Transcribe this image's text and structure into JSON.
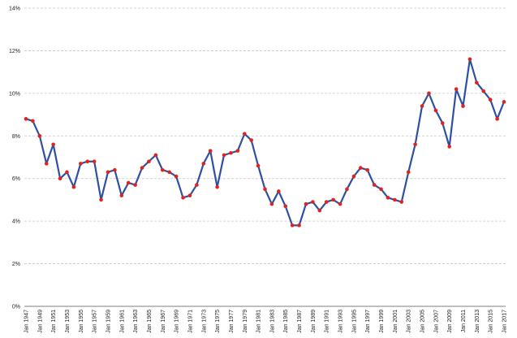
{
  "chart_data": {
    "type": "line",
    "title": "",
    "xlabel": "",
    "ylabel": "",
    "ylim": [
      0,
      14
    ],
    "y_ticks": [
      0,
      2,
      4,
      6,
      8,
      10,
      12,
      14
    ],
    "y_tick_labels": [
      "0%",
      "2%",
      "4%",
      "6%",
      "8%",
      "10%",
      "12%",
      "14%"
    ],
    "grid": "horizontal dashed",
    "legend": "none",
    "colors": {
      "line": "#2f50a2",
      "marker": "#e0231c",
      "grid": "#c8c8c8"
    },
    "x": [
      "Jan 1947",
      "Jan 1948",
      "Jan 1949",
      "Jan 1950",
      "Jan 1951",
      "Jan 1952",
      "Jan 1953",
      "Jan 1954",
      "Jan 1955",
      "Jan 1956",
      "Jan 1957",
      "Jan 1958",
      "Jan 1959",
      "Jan 1960",
      "Jan 1961",
      "Jan 1962",
      "Jan 1963",
      "Jan 1964",
      "Jan 1965",
      "Jan 1966",
      "Jan 1967",
      "Jan 1968",
      "Jan 1969",
      "Jan 1970",
      "Jan 1971",
      "Jan 1972",
      "Jan 1973",
      "Jan 1974",
      "Jan 1975",
      "Jan 1976",
      "Jan 1977",
      "Jan 1978",
      "Jan 1979",
      "Jan 1980",
      "Jan 1981",
      "Jan 1982",
      "Jan 1983",
      "Jan 1984",
      "Jan 1985",
      "Jan 1986",
      "Jan 1987",
      "Jan 1988",
      "Jan 1989",
      "Jan 1990",
      "Jan 1991",
      "Jan 1992",
      "Jan 1993",
      "Jan 1994",
      "Jan 1995",
      "Jan 1996",
      "Jan 1997",
      "Jan 1998",
      "Jan 1999",
      "Jan 2000",
      "Jan 2001",
      "Jan 2002",
      "Jan 2003",
      "Jan 2004",
      "Jan 2005",
      "Jan 2006",
      "Jan 2007",
      "Jan 2008",
      "Jan 2009",
      "Jan 2010",
      "Jan 2011",
      "Jan 2012",
      "Jan 2013",
      "Jan 2014",
      "Jan 2015",
      "Jan 2016",
      "Jan 2017"
    ],
    "x_tick_labels": [
      "Jan 1947",
      "Jan 1949",
      "Jan 1951",
      "Jan 1953",
      "Jan 1955",
      "Jan 1957",
      "Jan 1959",
      "Jan 1961",
      "Jan 1963",
      "Jan 1965",
      "Jan 1967",
      "Jan 1969",
      "Jan 1971",
      "Jan 1973",
      "Jan 1975",
      "Jan 1977",
      "Jan 1979",
      "Jan 1981",
      "Jan 1983",
      "Jan 1985",
      "Jan 1987",
      "Jan 1989",
      "Jan 1991",
      "Jan 1993",
      "Jan 1995",
      "Jan 1997",
      "Jan 1999",
      "Jan 2001",
      "Jan 2003",
      "Jan 2005",
      "Jan 2007",
      "Jan 2009",
      "Jan 2011",
      "Jan 2013",
      "Jan 2015",
      "Jan 2017"
    ],
    "values": [
      8.8,
      8.7,
      8.0,
      6.7,
      7.6,
      6.0,
      6.3,
      5.6,
      6.7,
      6.8,
      6.8,
      5.0,
      6.3,
      6.4,
      5.2,
      5.8,
      5.7,
      6.5,
      6.8,
      7.1,
      6.4,
      6.3,
      6.1,
      5.1,
      5.2,
      5.7,
      6.7,
      7.3,
      5.6,
      7.1,
      7.2,
      7.3,
      8.1,
      7.8,
      6.6,
      5.5,
      4.8,
      5.4,
      4.7,
      3.8,
      3.8,
      4.8,
      4.9,
      4.5,
      4.9,
      5.0,
      4.8,
      5.5,
      6.1,
      6.5,
      6.4,
      5.7,
      5.5,
      5.1,
      5.0,
      4.9,
      6.3,
      7.6,
      9.4,
      10.0,
      9.2,
      8.6,
      7.5,
      10.2,
      9.4,
      11.6,
      10.5,
      10.1,
      9.7,
      8.8,
      9.6
    ]
  }
}
